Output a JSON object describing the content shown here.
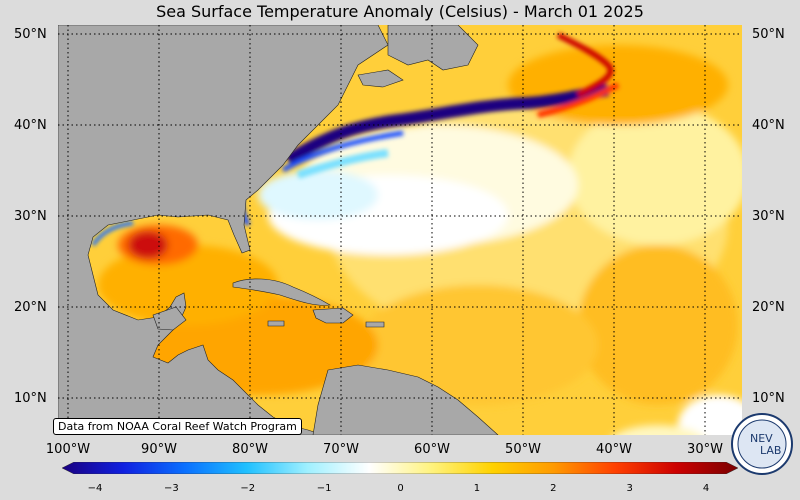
{
  "title": "Sea Surface Temperature Anomaly (Celsius) - March 01 2025",
  "lat_labels": [
    "50°N",
    "40°N",
    "30°N",
    "20°N",
    "10°N"
  ],
  "lon_labels": [
    "100°W",
    "90°W",
    "80°W",
    "70°W",
    "60°W",
    "50°W",
    "40°W",
    "30°W"
  ],
  "credit": "Data from NOAA Coral Reef Watch Program",
  "colorbar": {
    "min": -4,
    "max": 4,
    "ticks": [
      "−4",
      "−3",
      "−2",
      "−1",
      "0",
      "1",
      "2",
      "3",
      "4"
    ],
    "colors": [
      "#1a0080",
      "#1020e0",
      "#0a70ff",
      "#20c0ff",
      "#a0f0ff",
      "#ffffff",
      "#fff380",
      "#ffd200",
      "#ff9a00",
      "#ff4000",
      "#cc0000",
      "#7a0000"
    ]
  },
  "logo": {
    "text_top": "NEV",
    "text_bottom": "LAB"
  },
  "colors": {
    "land": "#a8a8a8",
    "ocean_base": "#ffd84a",
    "background": "#dcdcdc"
  }
}
